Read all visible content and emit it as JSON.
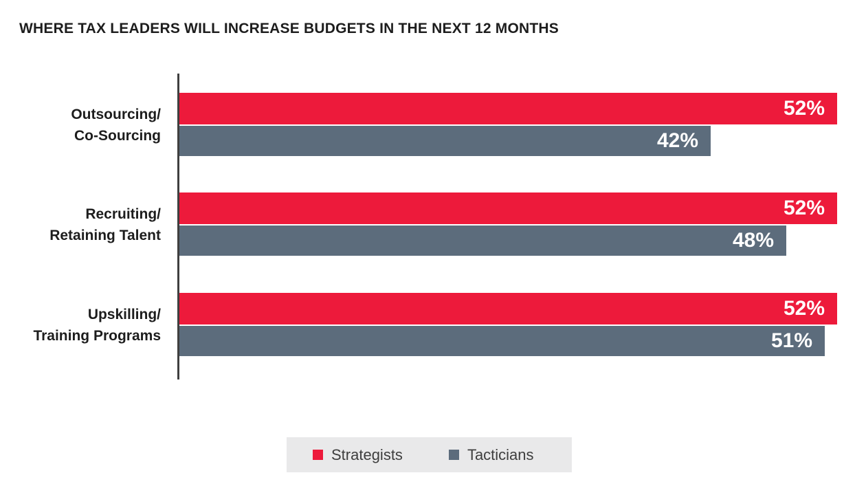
{
  "title": "WHERE TAX LEADERS WILL INCREASE BUDGETS IN THE NEXT 12 MONTHS",
  "chart_data": {
    "type": "bar",
    "orientation": "horizontal",
    "title": "WHERE TAX LEADERS WILL INCREASE BUDGETS IN THE NEXT 12 MONTHS",
    "categories": [
      "Outsourcing/ Co-Sourcing",
      "Recruiting/ Retaining Talent",
      "Upskilling/ Training Programs"
    ],
    "category_lines": [
      [
        "Outsourcing/",
        "Co-Sourcing"
      ],
      [
        "Recruiting/",
        "Retaining Talent"
      ],
      [
        "Upskilling/",
        "Training Programs"
      ]
    ],
    "series": [
      {
        "name": "Strategists",
        "color": "#ed1a3b",
        "values": [
          52,
          52,
          52
        ]
      },
      {
        "name": "Tacticians",
        "color": "#5c6c7c",
        "values": [
          42,
          48,
          51
        ]
      }
    ],
    "value_suffix": "%",
    "value_labels": "inside-end",
    "value_label_color": "#ffffff",
    "xlim": [
      0,
      52
    ],
    "grid": false,
    "legend_position": "bottom-center",
    "xlabel": "",
    "ylabel": ""
  },
  "legend": {
    "background": "#e9e9ea",
    "items": [
      {
        "label": "Strategists",
        "color": "#ed1a3b"
      },
      {
        "label": "Tacticians",
        "color": "#5c6c7c"
      }
    ]
  },
  "colors": {
    "strategists": "#ed1a3b",
    "tacticians": "#5c6c7c",
    "axis": "#3f3f3f",
    "title_text": "#1d1d1d",
    "legend_background": "#e9e9ea",
    "legend_text": "#3e3e3e",
    "background": "#ffffff"
  }
}
